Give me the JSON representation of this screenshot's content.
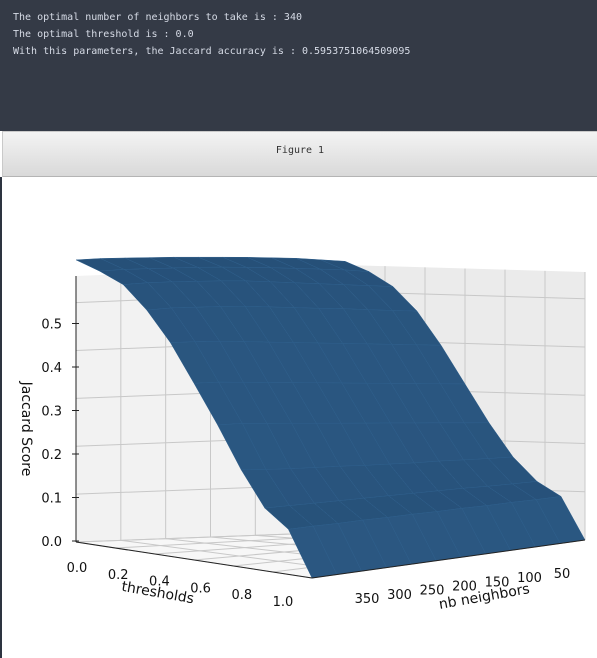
{
  "console": {
    "lines": [
      "The optimal number of neighbors to take is : 340",
      "The optimal threshold is : 0.0",
      "With this parameters, the Jaccard accuracy is : 0.595375106450909​5"
    ]
  },
  "window": {
    "title": "Figure 1"
  },
  "chart_data": {
    "type": "surface",
    "title": "",
    "zlabel": "Jaccard Score",
    "xlabel": "thresholds",
    "ylabel": "nb neighbors",
    "z_ticks": [
      "0.0",
      "0.1",
      "0.2",
      "0.3",
      "0.4",
      "0.5"
    ],
    "x_ticks": [
      "0.0",
      "0.2",
      "0.4",
      "0.6",
      "0.8",
      "1.0"
    ],
    "y_ticks": [
      "350",
      "300",
      "250",
      "200",
      "150",
      "100",
      "50"
    ],
    "zlim": [
      0,
      0.6
    ],
    "grid": true,
    "surface_color": "#1f4e79",
    "thresholds": [
      0.0,
      0.1,
      0.2,
      0.3,
      0.4,
      0.5,
      0.6,
      0.7,
      0.8,
      0.9,
      1.0
    ],
    "neighbors": [
      20,
      50,
      80,
      110,
      140,
      170,
      200,
      230,
      260,
      290,
      320,
      350
    ],
    "scores_by_threshold": [
      [
        0.57,
        0.575,
        0.58,
        0.583,
        0.586,
        0.588,
        0.59,
        0.592,
        0.593,
        0.594,
        0.595,
        0.594
      ],
      [
        0.55,
        0.556,
        0.56,
        0.564,
        0.568,
        0.571,
        0.574,
        0.576,
        0.577,
        0.578,
        0.579,
        0.578
      ],
      [
        0.52,
        0.525,
        0.53,
        0.535,
        0.54,
        0.545,
        0.55,
        0.553,
        0.555,
        0.557,
        0.558,
        0.557
      ],
      [
        0.47,
        0.475,
        0.48,
        0.486,
        0.49,
        0.495,
        0.5,
        0.505,
        0.508,
        0.51,
        0.512,
        0.511
      ],
      [
        0.4,
        0.405,
        0.41,
        0.415,
        0.42,
        0.425,
        0.43,
        0.435,
        0.44,
        0.445,
        0.448,
        0.45
      ],
      [
        0.32,
        0.325,
        0.33,
        0.335,
        0.34,
        0.345,
        0.35,
        0.355,
        0.36,
        0.365,
        0.37,
        0.372
      ],
      [
        0.24,
        0.245,
        0.25,
        0.255,
        0.26,
        0.265,
        0.27,
        0.275,
        0.28,
        0.285,
        0.29,
        0.292
      ],
      [
        0.17,
        0.172,
        0.175,
        0.178,
        0.18,
        0.183,
        0.186,
        0.19,
        0.193,
        0.196,
        0.2,
        0.205
      ],
      [
        0.12,
        0.121,
        0.122,
        0.124,
        0.125,
        0.126,
        0.127,
        0.128,
        0.129,
        0.13,
        0.131,
        0.132
      ],
      [
        0.09,
        0.09,
        0.091,
        0.091,
        0.092,
        0.092,
        0.093,
        0.093,
        0.094,
        0.094,
        0.095,
        0.095
      ],
      [
        0.0,
        0.0,
        0.0,
        0.0,
        0.0,
        0.0,
        0.0,
        0.0,
        0.0,
        0.0,
        0.0,
        0.0
      ]
    ]
  }
}
